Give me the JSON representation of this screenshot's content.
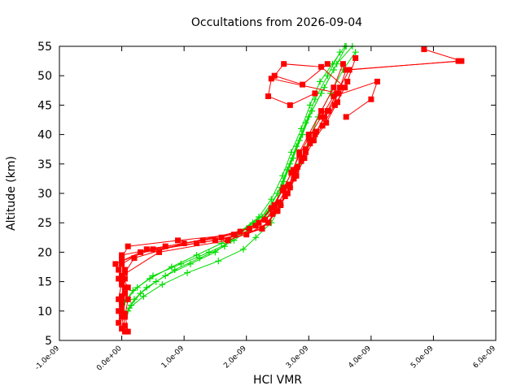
{
  "chart_data": {
    "type": "scatter",
    "title": "Occultations from 2026-09-04",
    "xlabel": "HCl VMR",
    "ylabel": "Altitude (km)",
    "xlim": [
      -1e-09,
      6e-09
    ],
    "ylim": [
      5,
      55
    ],
    "x_tick_labels": [
      "-1.0e-09",
      "0.0e+00",
      "1.0e-09",
      "2.0e-09",
      "3.0e-09",
      "4.0e-09",
      "5.0e-09",
      "6.0e-09"
    ],
    "x_ticks": [
      -1e-09,
      0,
      1e-09,
      2e-09,
      3e-09,
      4e-09,
      5e-09,
      6e-09
    ],
    "y_tick_labels": [
      "5",
      "10",
      "15",
      "20",
      "25",
      "30",
      "35",
      "40",
      "45",
      "50",
      "55"
    ],
    "y_ticks": [
      5,
      10,
      15,
      20,
      25,
      30,
      35,
      40,
      45,
      50,
      55
    ],
    "grid": false,
    "legend": "none",
    "series": [
      {
        "color": "#00dd00",
        "marker": "plus",
        "profiles": [
          {
            "x": [
              1e-10,
              2e-10,
              4e-10,
              7e-10,
              1.1e-09,
              1.5e-09,
              1.75e-09,
              2e-09,
              2.25e-09,
              2.5e-09,
              2.65e-09,
              2.8e-09,
              2.95e-09,
              3.1e-09,
              3.3e-09,
              3.5e-09
            ],
            "y": [
              10,
              12,
              14,
              16,
              18,
              20,
              22,
              24,
              26,
              30,
              34,
              38,
              42,
              46,
              50,
              54
            ]
          },
          {
            "x": [
              1.5e-10,
              3e-10,
              5.5e-10,
              8.5e-10,
              1.25e-09,
              1.65e-09,
              1.85e-09,
              2.1e-09,
              2.35e-09,
              2.55e-09,
              2.7e-09,
              2.85e-09,
              3e-09,
              3.2e-09,
              3.4e-09,
              3.6e-09
            ],
            "y": [
              11,
              13,
              15,
              17,
              19,
              21,
              23,
              25,
              27,
              31,
              35,
              39,
              43,
              47,
              51,
              55
            ]
          },
          {
            "x": [
              8e-11,
              2.5e-10,
              5e-10,
              9.5e-10,
              1.4e-09,
              1.8e-09,
              2.05e-09,
              2.3e-09,
              2.45e-09,
              2.6e-09,
              2.75e-09,
              2.9e-09,
              3.05e-09,
              3.25e-09,
              3.45e-09,
              3.7e-09
            ],
            "y": [
              12,
              14,
              16,
              18,
              20,
              22,
              24,
              26,
              28,
              32,
              36,
              40,
              44,
              48,
              52,
              55
            ]
          },
          {
            "x": [
              1.2e-10,
              3.5e-10,
              6.5e-10,
              1.05e-09,
              1.55e-09,
              1.95e-09,
              2.15e-09,
              2.4e-09,
              2.55e-09,
              2.7e-09,
              2.85e-09,
              3e-09,
              3.15e-09,
              3.35e-09,
              3.55e-09,
              3.75e-09
            ],
            "y": [
              10.5,
              12.5,
              14.5,
              16.5,
              18.5,
              20.5,
              22.5,
              25,
              28,
              31,
              35,
              39,
              43,
              47,
              51,
              54
            ]
          },
          {
            "x": [
              5e-11,
              1.8e-10,
              4.5e-10,
              8e-10,
              1.2e-09,
              1.6e-09,
              1.9e-09,
              2.2e-09,
              2.4e-09,
              2.58e-09,
              2.72e-09,
              2.88e-09,
              3.02e-09,
              3.18e-09,
              3.38e-09,
              3.58e-09
            ],
            "y": [
              11.5,
              13.5,
              15.5,
              17.5,
              19.5,
              21.5,
              23.5,
              26,
              29,
              33,
              37,
              41,
              45,
              49,
              52,
              55
            ]
          }
        ]
      },
      {
        "color": "#ff0000",
        "marker": "square",
        "profiles": [
          {
            "x": [
              5e-11,
              0.0,
              -5e-11,
              0.0,
              5e-11,
              0.0,
              1e-10,
              9e-10,
              1.8e-09,
              2.2e-09,
              2.45e-09,
              2.6e-09,
              2.75e-09,
              2.85e-09,
              3e-09,
              3.2e-09,
              3.4e-09,
              3.55e-09
            ],
            "y": [
              6.5,
              9,
              12,
              15,
              17,
              19,
              21,
              22,
              23,
              25,
              28,
              31,
              34,
              37,
              40,
              44,
              48,
              52
            ]
          },
          {
            "x": [
              0.0,
              -5e-11,
              5e-11,
              0.0,
              -1e-10,
              3e-10,
              1.2e-09,
              2e-09,
              2.35e-09,
              2.55e-09,
              2.7e-09,
              2.8e-09,
              2.95e-09,
              3.1e-09,
              3.3e-09,
              3.5e-09,
              3.6e-09,
              5.45e-09,
              4.85e-09
            ],
            "y": [
              7,
              10,
              13,
              16,
              18,
              20,
              21.5,
              23,
              25,
              28,
              31,
              34,
              37,
              40,
              44,
              48,
              51,
              52.5,
              54.5
            ]
          },
          {
            "x": [
              1e-10,
              5e-11,
              0.0,
              5e-11,
              0.0,
              5e-10,
              1.5e-09,
              2.25e-09,
              2.5e-09,
              2.65e-09,
              2.78e-09,
              2.9e-09,
              3.05e-09,
              3.25e-09,
              3.45e-09,
              3.65e-09,
              5.4e-09
            ],
            "y": [
              6.5,
              9.5,
              12.5,
              15.5,
              18.5,
              20.5,
              22,
              24,
              27,
              30,
              33,
              36,
              39,
              43,
              47,
              51,
              52.5
            ]
          },
          {
            "x": [
              -5e-11,
              0.0,
              5e-11,
              -5e-11,
              0.0,
              7e-10,
              1.6e-09,
              2.15e-09,
              2.4e-09,
              2.58e-09,
              2.72e-09,
              2.85e-09,
              3e-09,
              3.2e-09,
              3.4e-09,
              4.1e-09,
              4e-09,
              3.6e-09
            ],
            "y": [
              8,
              11,
              14,
              17,
              19.5,
              21,
              22.5,
              24.5,
              27.5,
              30.5,
              33.5,
              36.5,
              39.5,
              43,
              46.5,
              49,
              46,
              43
            ]
          },
          {
            "x": [
              5e-11,
              1e-10,
              0.0,
              5e-11,
              2e-10,
              1e-09,
              1.9e-09,
              2.3e-09,
              2.52e-09,
              2.68e-09,
              2.82e-09,
              2.95e-09,
              3.12e-09,
              3.32e-09,
              3.48e-09,
              2.4e-09,
              2.35e-09,
              2.7e-09,
              3.1e-09
            ],
            "y": [
              9,
              12,
              14.5,
              16.5,
              19,
              21.5,
              23.5,
              25.5,
              28.5,
              31.5,
              34.5,
              37.5,
              40.5,
              44,
              47,
              49.5,
              46.5,
              45,
              47
            ]
          },
          {
            "x": [
              0.0,
              5e-11,
              -5e-11,
              0.0,
              4e-10,
              1.3e-09,
              2.05e-09,
              2.42e-09,
              2.62e-09,
              2.76e-09,
              2.88e-09,
              3.02e-09,
              3.22e-09,
              3.42e-09,
              3.58e-09,
              3.2e-09,
              2.6e-09,
              2.45e-09,
              2.9e-09,
              3.3e-09
            ],
            "y": [
              10,
              13,
              15.5,
              18,
              20.5,
              22,
              24,
              26.5,
              29.5,
              32.5,
              35.5,
              38.5,
              41.5,
              45,
              48,
              51.5,
              52,
              50,
              48.5,
              52
            ]
          },
          {
            "x": [
              5e-11,
              0.0,
              1e-10,
              0.0,
              6e-10,
              1.7e-09,
              2.25e-09,
              2.48e-09,
              2.66e-09,
              2.8e-09,
              2.93e-09,
              3.08e-09,
              3.28e-09,
              3.46e-09,
              3.62e-09,
              3.75e-09
            ],
            "y": [
              7.5,
              11.5,
              14,
              16,
              20,
              22,
              24,
              27,
              30,
              33,
              36,
              39,
              42,
              45.5,
              49,
              53
            ]
          }
        ]
      }
    ]
  }
}
